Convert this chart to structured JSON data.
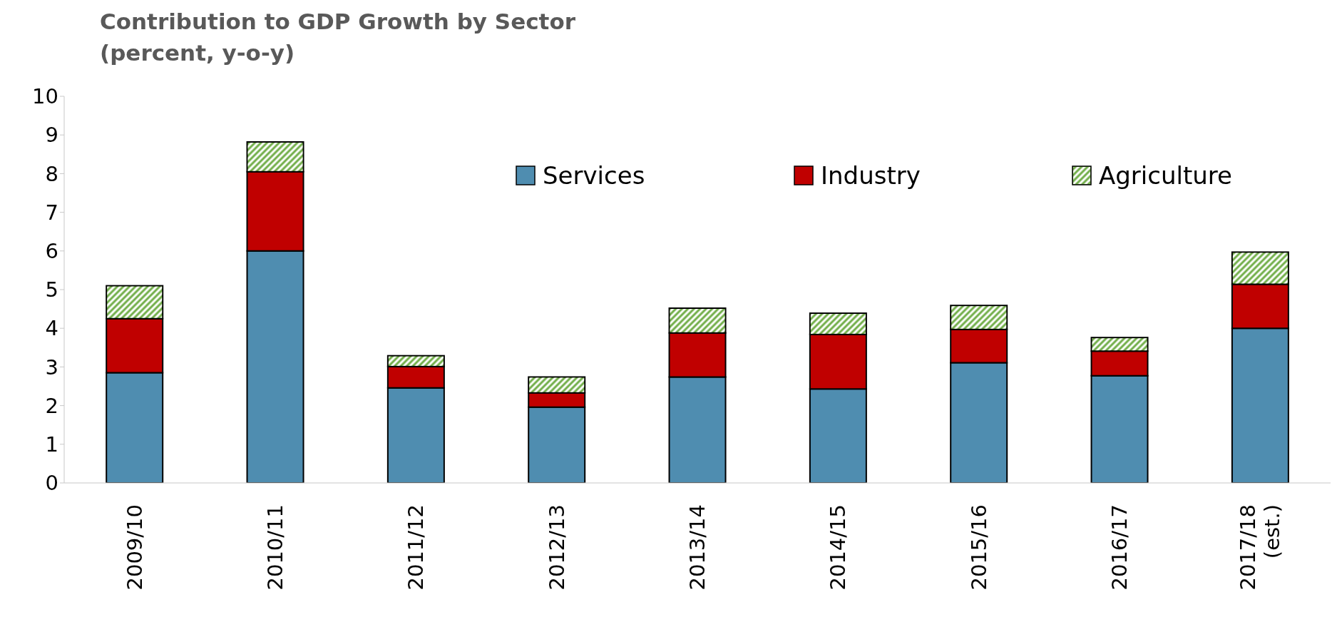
{
  "chart_data": {
    "type": "bar",
    "title": "Contribution to GDP Growth by Sector",
    "subtitle": "(percent, y-o-y)",
    "categories": [
      "2009/10",
      "2010/11",
      "2011/12",
      "2012/13",
      "2013/14",
      "2014/15",
      "2015/16",
      "2016/17",
      "2017/18 (est.)"
    ],
    "stacked": true,
    "series": [
      {
        "name": "Services",
        "color": "#4f8db0",
        "values": [
          2.85,
          6.0,
          2.46,
          1.96,
          2.74,
          2.43,
          3.11,
          2.77,
          4.0
        ]
      },
      {
        "name": "Industry",
        "color": "#c00000",
        "values": [
          1.4,
          2.05,
          0.55,
          0.37,
          1.14,
          1.41,
          0.86,
          0.64,
          1.14
        ]
      },
      {
        "name": "Agriculture",
        "color": "#70ad47",
        "values": [
          0.85,
          0.77,
          0.28,
          0.41,
          0.64,
          0.55,
          0.62,
          0.35,
          0.83
        ]
      }
    ],
    "ylim": [
      0,
      10
    ],
    "yticks": [
      0,
      1,
      2,
      3,
      4,
      5,
      6,
      7,
      8,
      9,
      10
    ],
    "grid": false,
    "legend": "top right"
  }
}
